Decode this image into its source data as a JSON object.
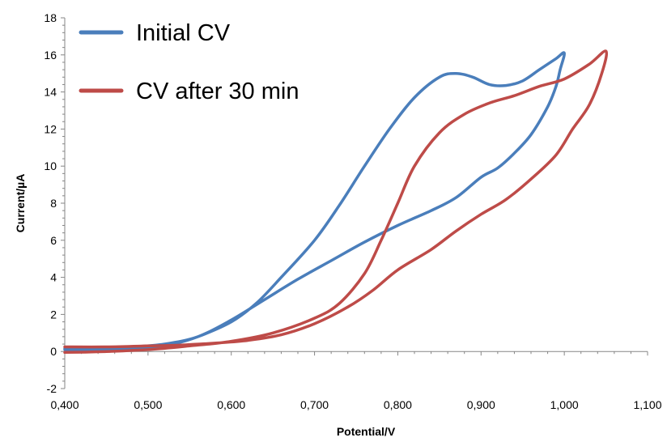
{
  "chart_data": {
    "type": "line",
    "title": "",
    "xlabel": "Potential/V",
    "ylabel": "Current/µA",
    "xlim": [
      0.4,
      1.1
    ],
    "ylim": [
      -2,
      18
    ],
    "xticks": [
      0.4,
      0.5,
      0.6,
      0.7,
      0.8,
      0.9,
      1.0,
      1.1
    ],
    "xtick_labels": [
      "0,400",
      "0,500",
      "0,600",
      "0,700",
      "0,800",
      "0,900",
      "1,000",
      "1,100"
    ],
    "yticks": [
      -2,
      0,
      2,
      4,
      6,
      8,
      10,
      12,
      14,
      16,
      18
    ],
    "ytick_labels": [
      "-2",
      "0",
      "2",
      "4",
      "6",
      "8",
      "10",
      "12",
      "14",
      "16",
      "18"
    ],
    "grid": false,
    "legend_position": "top-left",
    "series": [
      {
        "name": "Initial CV",
        "color": "#4a7ebb",
        "points": [
          [
            0.4,
            0.1
          ],
          [
            0.45,
            0.12
          ],
          [
            0.5,
            0.2
          ],
          [
            0.53,
            0.4
          ],
          [
            0.56,
            0.8
          ],
          [
            0.6,
            1.6
          ],
          [
            0.63,
            2.6
          ],
          [
            0.66,
            4.0
          ],
          [
            0.7,
            6.0
          ],
          [
            0.73,
            7.9
          ],
          [
            0.76,
            10.0
          ],
          [
            0.79,
            12.0
          ],
          [
            0.82,
            13.7
          ],
          [
            0.85,
            14.8
          ],
          [
            0.87,
            15.0
          ],
          [
            0.89,
            14.8
          ],
          [
            0.91,
            14.4
          ],
          [
            0.93,
            14.35
          ],
          [
            0.95,
            14.6
          ],
          [
            0.97,
            15.2
          ],
          [
            0.99,
            15.8
          ],
          [
            1.0,
            16.1
          ],
          [
            0.995,
            15.2
          ],
          [
            0.99,
            14.3
          ],
          [
            0.98,
            13.2
          ],
          [
            0.96,
            11.7
          ],
          [
            0.94,
            10.7
          ],
          [
            0.92,
            9.9
          ],
          [
            0.9,
            9.4
          ],
          [
            0.87,
            8.3
          ],
          [
            0.84,
            7.6
          ],
          [
            0.8,
            6.8
          ],
          [
            0.76,
            5.9
          ],
          [
            0.72,
            4.9
          ],
          [
            0.68,
            3.9
          ],
          [
            0.64,
            2.8
          ],
          [
            0.6,
            1.7
          ],
          [
            0.56,
            0.8
          ],
          [
            0.52,
            0.4
          ],
          [
            0.48,
            0.25
          ],
          [
            0.44,
            0.2
          ],
          [
            0.4,
            0.15
          ]
        ]
      },
      {
        "name": "CV after 30 min",
        "color": "#be4b48",
        "points": [
          [
            0.4,
            -0.05
          ],
          [
            0.45,
            0.0
          ],
          [
            0.5,
            0.1
          ],
          [
            0.55,
            0.3
          ],
          [
            0.6,
            0.55
          ],
          [
            0.65,
            1.0
          ],
          [
            0.7,
            1.8
          ],
          [
            0.73,
            2.6
          ],
          [
            0.76,
            4.2
          ],
          [
            0.78,
            6.0
          ],
          [
            0.8,
            8.0
          ],
          [
            0.82,
            10.0
          ],
          [
            0.85,
            11.8
          ],
          [
            0.88,
            12.8
          ],
          [
            0.91,
            13.4
          ],
          [
            0.94,
            13.8
          ],
          [
            0.97,
            14.3
          ],
          [
            1.0,
            14.7
          ],
          [
            1.03,
            15.5
          ],
          [
            1.05,
            16.2
          ],
          [
            1.045,
            15.0
          ],
          [
            1.03,
            13.3
          ],
          [
            1.01,
            12.0
          ],
          [
            0.99,
            10.6
          ],
          [
            0.96,
            9.3
          ],
          [
            0.93,
            8.2
          ],
          [
            0.9,
            7.4
          ],
          [
            0.87,
            6.5
          ],
          [
            0.84,
            5.5
          ],
          [
            0.8,
            4.4
          ],
          [
            0.77,
            3.3
          ],
          [
            0.74,
            2.4
          ],
          [
            0.7,
            1.5
          ],
          [
            0.66,
            0.9
          ],
          [
            0.62,
            0.6
          ],
          [
            0.58,
            0.45
          ],
          [
            0.54,
            0.35
          ],
          [
            0.5,
            0.3
          ],
          [
            0.45,
            0.25
          ],
          [
            0.4,
            0.25
          ]
        ]
      }
    ]
  }
}
